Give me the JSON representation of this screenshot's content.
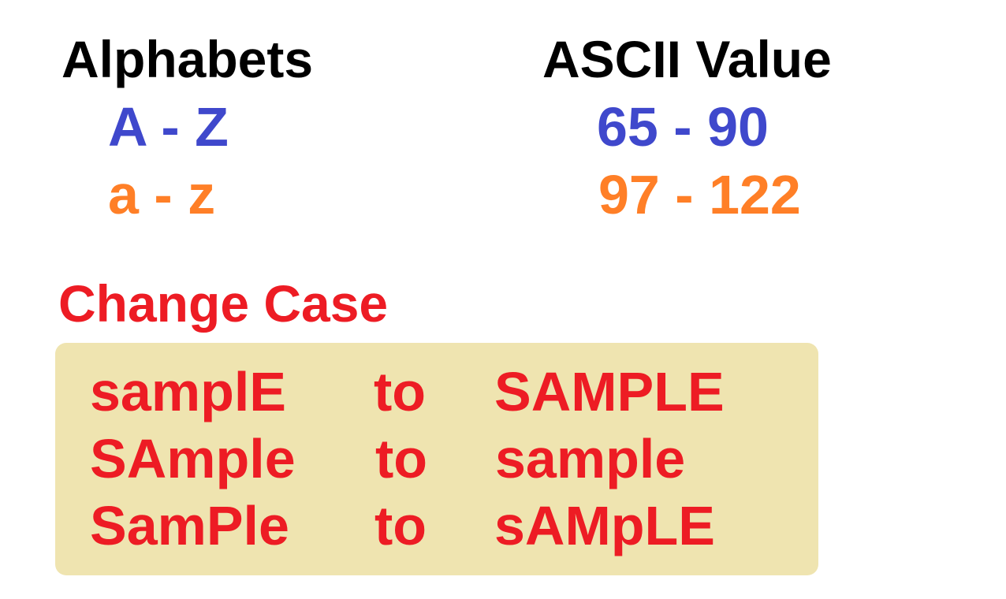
{
  "headers": {
    "alphabets": "Alphabets",
    "ascii_value": "ASCII Value"
  },
  "ranges": [
    {
      "letters": "A - Z",
      "ascii": "65 - 90"
    },
    {
      "letters": "a - z",
      "ascii": "97 - 122"
    }
  ],
  "change_case": {
    "title": "Change Case",
    "examples": [
      {
        "from": "samplE",
        "to": "to",
        "result": "SAMPLE"
      },
      {
        "from": "SAmple",
        "to": "to",
        "result": "sample"
      },
      {
        "from": "SamPle",
        "to": "to",
        "result": "sAMpLE"
      }
    ]
  },
  "colors": {
    "uppercase": "#3f48cc",
    "lowercase": "#ff7f27",
    "highlight": "#ed1c24",
    "box_background": "#efe4b0"
  }
}
